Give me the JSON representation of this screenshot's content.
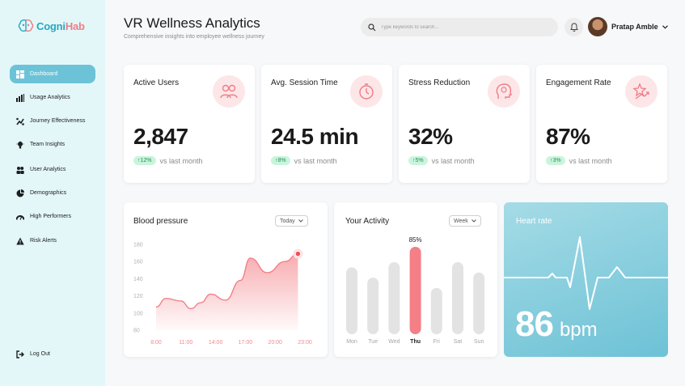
{
  "brand": {
    "name_part1": "Cogni",
    "name_part2": "Hab"
  },
  "sidebar": {
    "items": [
      {
        "label": "Dashboard",
        "icon": "dashboard-icon"
      },
      {
        "label": "Usage Analytics",
        "icon": "bar-chart-icon"
      },
      {
        "label": "Journey Effectiveness",
        "icon": "route-icon"
      },
      {
        "label": "Team Insights",
        "icon": "lightbulb-icon"
      },
      {
        "label": "User Analytics",
        "icon": "users-icon"
      },
      {
        "label": "Demographics",
        "icon": "pie-chart-icon"
      },
      {
        "label": "High Performers",
        "icon": "gauge-icon"
      },
      {
        "label": "Risk Alerts",
        "icon": "warning-icon"
      }
    ],
    "logout_label": "Log Out"
  },
  "header": {
    "title": "VR Wellness Analytics",
    "subtitle": "Comprehensive insights into employee wellness journey",
    "search_placeholder": "Type keywords to search...",
    "user_name": "Pratap Amble"
  },
  "stats": [
    {
      "title": "Active Users",
      "value": "2,847",
      "change": "12%",
      "comparison": "vs last month",
      "icon": "users-icon"
    },
    {
      "title": "Avg. Session Time",
      "value": "24.5 min",
      "change": "8%",
      "comparison": "vs last month",
      "icon": "timer-icon"
    },
    {
      "title": "Stress Reduction",
      "value": "32%",
      "change": "5%",
      "comparison": "vs last month",
      "icon": "brain-icon"
    },
    {
      "title": "Engagement Rate",
      "value": "87%",
      "change": "3%",
      "comparison": "vs last month",
      "icon": "star-trend-icon"
    }
  ],
  "blood_pressure": {
    "title": "Blood pressure",
    "range_select": "Today"
  },
  "activity": {
    "title": "Your Activity",
    "range_select": "Week",
    "highlight_label": "85%"
  },
  "heart_rate": {
    "title": "Heart rate",
    "value": "86",
    "unit": "bpm"
  },
  "colors": {
    "accent": "#6cc3d8",
    "brand_pink": "#f07c86",
    "positive": "#c9f5dc",
    "bar_highlight": "#f47f86",
    "bar_default": "#e3e3e3"
  },
  "chart_data": [
    {
      "type": "area",
      "title": "Blood pressure",
      "x": [
        "8:00",
        "11:00",
        "14:00",
        "17:00",
        "20:00",
        "23:00"
      ],
      "ylim": [
        80,
        180
      ],
      "yticks": [
        80,
        100,
        120,
        140,
        160,
        180
      ],
      "series": [
        {
          "x": [
            8.0,
            9.0,
            10.5,
            11.5,
            12.5,
            13.5,
            15.0,
            16.5,
            17.5,
            19.2,
            21.0,
            22.3
          ],
          "values": [
            107,
            117,
            114,
            105,
            112,
            122,
            115,
            138,
            164,
            147,
            160,
            169
          ]
        }
      ]
    },
    {
      "type": "bar",
      "title": "Your Activity",
      "categories": [
        "Mon",
        "Tue",
        "Wed",
        "Thu",
        "Fri",
        "Sat",
        "Sun"
      ],
      "values": [
        65,
        55,
        70,
        85,
        45,
        70,
        60
      ],
      "highlight_index": 3
    }
  ]
}
